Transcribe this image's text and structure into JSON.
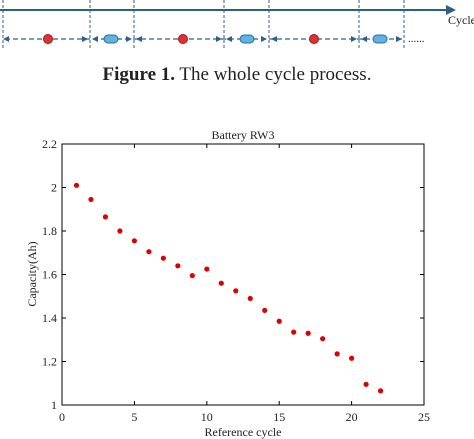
{
  "diagram": {
    "axis_label": "Cycle",
    "ellipsis": "......",
    "colors": {
      "line": "#2c5f8a",
      "red_marker": "#e03030",
      "blue_marker": "#5fb3e0"
    }
  },
  "caption": {
    "label": "Figure 1.",
    "text": " The whole cycle process."
  },
  "chart_data": {
    "type": "scatter",
    "title": "Battery RW3",
    "xlabel": "Reference cycle",
    "ylabel": "Capacity(Ah)",
    "xlim": [
      0,
      25
    ],
    "ylim": [
      1,
      2.2
    ],
    "xticks": [
      0,
      5,
      10,
      15,
      20,
      25
    ],
    "yticks": [
      1,
      1.2,
      1.4,
      1.6,
      1.8,
      2,
      2.2
    ],
    "grid": false,
    "marker_color": "#dd0000",
    "x": [
      1,
      2,
      3,
      4,
      5,
      6,
      7,
      8,
      9,
      10,
      11,
      12,
      13,
      14,
      15,
      16,
      17,
      18,
      19,
      20,
      21,
      22
    ],
    "y": [
      2.01,
      1.945,
      1.865,
      1.8,
      1.755,
      1.705,
      1.675,
      1.64,
      1.595,
      1.625,
      1.56,
      1.525,
      1.49,
      1.435,
      1.385,
      1.335,
      1.33,
      1.305,
      1.235,
      1.215,
      1.095,
      1.065
    ]
  }
}
